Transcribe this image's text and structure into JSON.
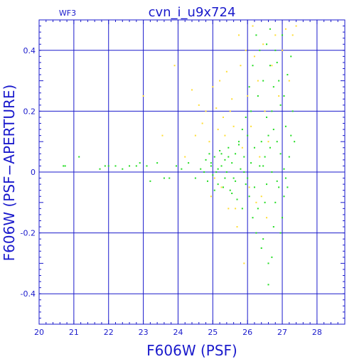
{
  "chart_data": {
    "type": "scatter",
    "title": "cvn_i_u9x724",
    "subtitle": "WF3",
    "xlabel": "F606W (PSF)",
    "ylabel": "F606W (PSF−APERTURE)",
    "xlim": [
      20,
      28.8
    ],
    "ylim": [
      -0.5,
      0.5
    ],
    "xticks": [
      20,
      21,
      22,
      23,
      24,
      25,
      26,
      27,
      28
    ],
    "yticks": [
      -0.4,
      -0.2,
      0,
      0.2,
      0.4
    ],
    "xtick_labels": [
      "20",
      "21",
      "22",
      "23",
      "24",
      "25",
      "26",
      "27",
      "28"
    ],
    "ytick_labels": [
      "-0.4",
      "-0.2",
      "0",
      "0.2",
      "0.4"
    ],
    "grid": true,
    "colors": {
      "axis": "#1a1acc",
      "grid": "#1a1acc",
      "series_green": "#22dd22",
      "series_yellow": "#ffdd33"
    },
    "series": [
      {
        "color": "#ffdd33",
        "points": [
          [
            23.0,
            0.25
          ],
          [
            23.55,
            0.12
          ],
          [
            23.9,
            0.35
          ],
          [
            24.2,
            0.05
          ],
          [
            24.4,
            0.27
          ],
          [
            24.5,
            0.12
          ],
          [
            24.6,
            0.22
          ],
          [
            24.7,
            0.16
          ],
          [
            24.8,
            0.2
          ],
          [
            24.9,
            0.1
          ],
          [
            25.0,
            0.28
          ],
          [
            25.1,
            0.21
          ],
          [
            25.15,
            0.14
          ],
          [
            25.2,
            0.3
          ],
          [
            25.3,
            0.18
          ],
          [
            25.35,
            0.12
          ],
          [
            25.4,
            0.33
          ],
          [
            25.5,
            0.2
          ],
          [
            25.55,
            0.24
          ],
          [
            25.6,
            0.15
          ],
          [
            25.65,
            -0.12
          ],
          [
            25.7,
            -0.18
          ],
          [
            25.75,
            0.45
          ],
          [
            25.8,
            0.35
          ],
          [
            25.85,
            0.08
          ],
          [
            25.9,
            -0.3
          ],
          [
            25.95,
            0.4
          ],
          [
            26.0,
            0.25
          ],
          [
            26.05,
            -0.05
          ],
          [
            26.1,
            0.15
          ],
          [
            26.15,
            0.48
          ],
          [
            26.2,
            0.38
          ],
          [
            26.25,
            -0.1
          ],
          [
            26.3,
            0.3
          ],
          [
            26.35,
            0.05
          ],
          [
            26.4,
            -0.08
          ],
          [
            26.45,
            0.42
          ],
          [
            26.5,
            0.2
          ],
          [
            26.55,
            -0.15
          ],
          [
            26.6,
            0.1
          ],
          [
            26.7,
            0.35
          ],
          [
            26.8,
            0.45
          ],
          [
            26.9,
            0.25
          ],
          [
            27.0,
            0.4
          ],
          [
            27.1,
            0.47
          ],
          [
            27.2,
            0.3
          ],
          [
            27.3,
            0.45
          ],
          [
            27.4,
            0.48
          ],
          [
            25.25,
            -0.05
          ],
          [
            24.95,
            -0.08
          ],
          [
            25.45,
            -0.12
          ],
          [
            25.05,
            -0.02
          ]
        ]
      },
      {
        "color": "#22dd22",
        "points": [
          [
            20.7,
            0.02
          ],
          [
            20.75,
            0.02
          ],
          [
            21.15,
            0.05
          ],
          [
            21.75,
            0.01
          ],
          [
            21.9,
            0.02
          ],
          [
            22.0,
            0.02
          ],
          [
            22.2,
            0.02
          ],
          [
            22.4,
            0.01
          ],
          [
            22.6,
            0.02
          ],
          [
            22.8,
            0.02
          ],
          [
            22.9,
            0.03
          ],
          [
            23.1,
            0.02
          ],
          [
            23.2,
            -0.03
          ],
          [
            23.4,
            0.03
          ],
          [
            23.6,
            -0.02
          ],
          [
            23.75,
            -0.02
          ],
          [
            23.95,
            0.02
          ],
          [
            24.1,
            0.01
          ],
          [
            24.3,
            0.03
          ],
          [
            24.5,
            -0.02
          ],
          [
            24.65,
            0.01
          ],
          [
            24.75,
            0.0
          ],
          [
            24.8,
            0.04
          ],
          [
            24.85,
            -0.03
          ],
          [
            24.9,
            0.06
          ],
          [
            24.95,
            0.02
          ],
          [
            25.0,
            -0.01
          ],
          [
            25.05,
            0.05
          ],
          [
            25.1,
            0.0
          ],
          [
            25.15,
            -0.04
          ],
          [
            25.2,
            0.07
          ],
          [
            25.25,
            0.02
          ],
          [
            25.3,
            -0.05
          ],
          [
            25.35,
            0.04
          ],
          [
            25.4,
            0.0
          ],
          [
            25.45,
            0.08
          ],
          [
            25.5,
            -0.06
          ],
          [
            25.55,
            0.03
          ],
          [
            25.6,
            -0.02
          ],
          [
            25.65,
            0.06
          ],
          [
            25.7,
            -0.09
          ],
          [
            25.75,
            0.1
          ],
          [
            25.8,
            0.01
          ],
          [
            25.85,
            -0.12
          ],
          [
            25.9,
            0.05
          ],
          [
            25.95,
            -0.04
          ],
          [
            26.0,
            0.12
          ],
          [
            26.05,
            -0.08
          ],
          [
            26.1,
            0.2
          ],
          [
            26.15,
            -0.15
          ],
          [
            26.2,
            0.08
          ],
          [
            26.25,
            -0.2
          ],
          [
            26.3,
            0.25
          ],
          [
            26.35,
            0.02
          ],
          [
            26.4,
            -0.25
          ],
          [
            26.45,
            0.3
          ],
          [
            26.5,
            -0.1
          ],
          [
            26.55,
            0.18
          ],
          [
            26.6,
            -0.3
          ],
          [
            26.65,
            0.35
          ],
          [
            26.7,
            0.0
          ],
          [
            26.75,
            -0.18
          ],
          [
            26.8,
            0.4
          ],
          [
            26.85,
            0.1
          ],
          [
            26.9,
            -0.05
          ],
          [
            26.95,
            0.22
          ],
          [
            27.0,
            0.45
          ],
          [
            27.05,
            -0.08
          ],
          [
            27.1,
            0.15
          ],
          [
            27.15,
            0.32
          ],
          [
            27.2,
            0.05
          ],
          [
            27.25,
            0.38
          ],
          [
            27.3,
            0.2
          ],
          [
            27.35,
            0.1
          ],
          [
            26.6,
            -0.37
          ],
          [
            26.7,
            -0.28
          ],
          [
            26.45,
            -0.22
          ],
          [
            26.35,
            0.4
          ],
          [
            26.25,
            0.45
          ],
          [
            26.15,
            0.35
          ],
          [
            26.05,
            0.28
          ],
          [
            25.95,
            0.18
          ],
          [
            25.85,
            0.14
          ],
          [
            25.75,
            0.09
          ],
          [
            25.65,
            -0.03
          ],
          [
            25.55,
            -0.07
          ],
          [
            25.45,
            0.05
          ],
          [
            25.35,
            -0.02
          ],
          [
            25.25,
            0.06
          ],
          [
            25.15,
            0.01
          ],
          [
            25.05,
            -0.06
          ],
          [
            24.95,
            0.03
          ],
          [
            26.5,
            0.05
          ],
          [
            26.6,
            0.12
          ],
          [
            26.7,
            0.2
          ],
          [
            26.8,
            -0.1
          ],
          [
            26.9,
            0.3
          ],
          [
            27.0,
            -0.15
          ],
          [
            27.1,
            -0.02
          ],
          [
            26.4,
            0.1
          ],
          [
            26.3,
            -0.12
          ],
          [
            26.2,
            -0.05
          ],
          [
            26.1,
            0.03
          ],
          [
            26.0,
            -0.02
          ],
          [
            25.9,
            0.0
          ],
          [
            26.55,
            0.42
          ],
          [
            26.65,
            0.47
          ],
          [
            26.75,
            0.28
          ],
          [
            26.85,
            0.36
          ],
          [
            26.95,
            -0.2
          ],
          [
            27.05,
            0.25
          ],
          [
            27.15,
            -0.05
          ],
          [
            27.25,
            0.12
          ],
          [
            26.45,
            0.02
          ],
          [
            26.55,
            -0.04
          ],
          [
            26.65,
            0.08
          ],
          [
            26.75,
            0.14
          ],
          [
            26.85,
            -0.03
          ],
          [
            26.95,
            0.06
          ],
          [
            27.05,
            0.01
          ]
        ]
      }
    ]
  }
}
